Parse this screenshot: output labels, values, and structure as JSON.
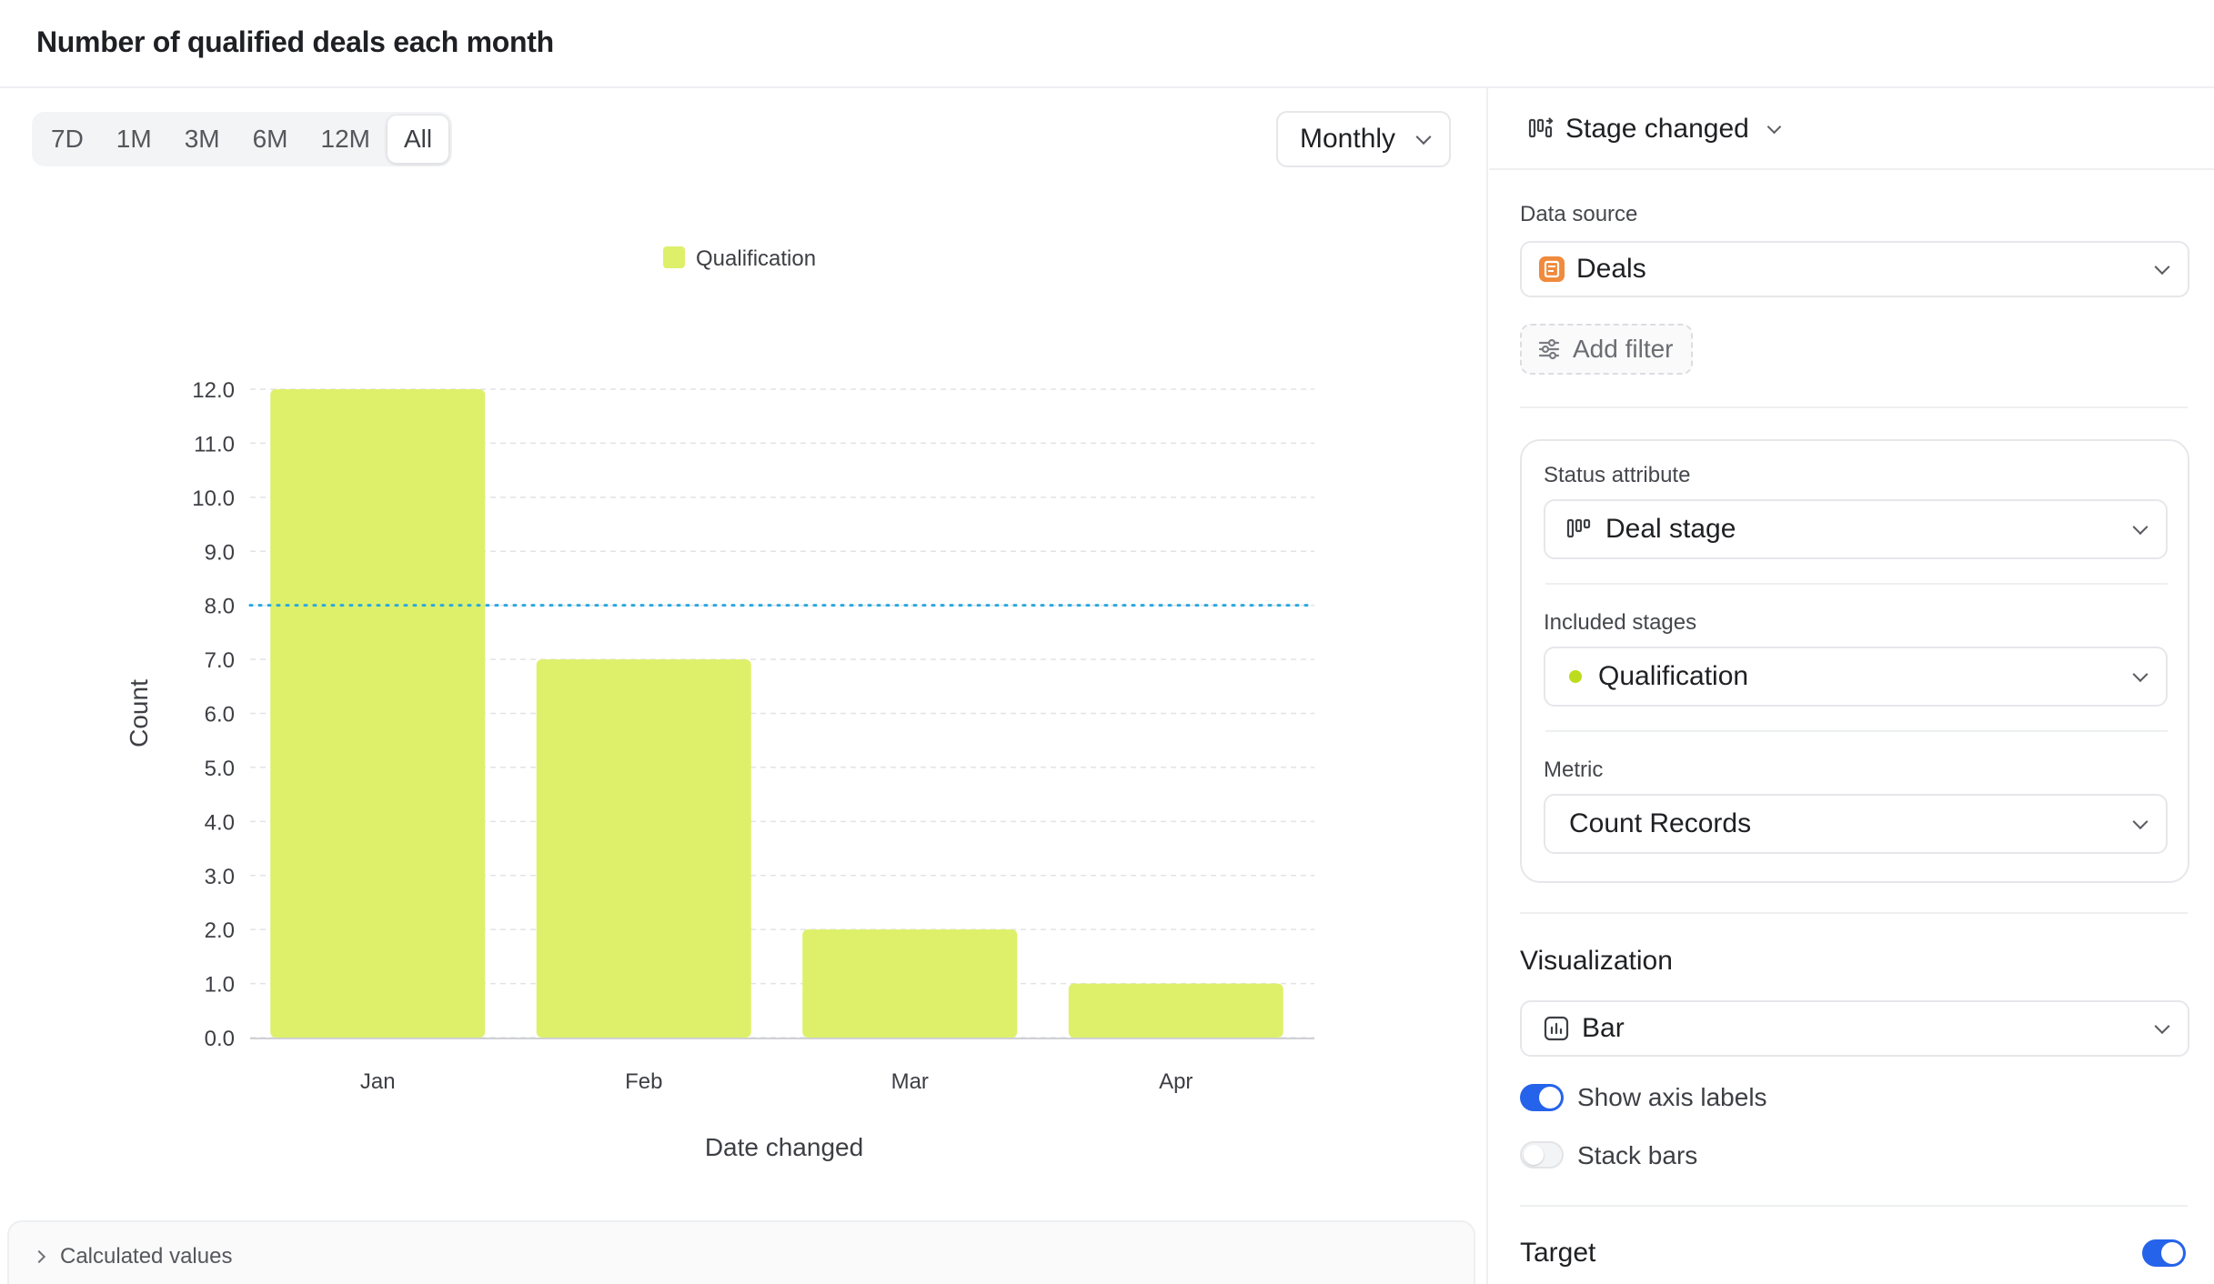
{
  "title": "Number of qualified deals each month",
  "range_options": [
    "7D",
    "1M",
    "3M",
    "6M",
    "12M",
    "All"
  ],
  "range_selected": "All",
  "granularity": "Monthly",
  "chart_data": {
    "type": "bar",
    "categories": [
      "Jan",
      "Feb",
      "Mar",
      "Apr"
    ],
    "series": [
      {
        "name": "Qualification",
        "values": [
          12,
          7,
          2,
          1
        ],
        "color": "#def06a"
      }
    ],
    "xlabel": "Date changed",
    "ylabel": "Count",
    "ylim": [
      0,
      12
    ],
    "yticks": [
      "0.0",
      "1.0",
      "2.0",
      "3.0",
      "4.0",
      "5.0",
      "6.0",
      "7.0",
      "8.0",
      "9.0",
      "10.0",
      "11.0",
      "12.0"
    ],
    "target": 8,
    "target_color": "#2aa8e0",
    "grid": true,
    "legend_position": "top"
  },
  "calculated_values_label": "Calculated values",
  "sidebar": {
    "trigger_label": "Stage changed",
    "data_source_label": "Data source",
    "data_source_value": "Deals",
    "add_filter_label": "Add filter",
    "status_attribute_label": "Status attribute",
    "status_attribute_value": "Deal stage",
    "included_stages_label": "Included stages",
    "included_stages_value": "Qualification",
    "stage_dot_color": "#bedc1e",
    "metric_label": "Metric",
    "metric_value": "Count Records",
    "visualization_label": "Visualization",
    "visualization_value": "Bar",
    "show_axis_labels_label": "Show axis labels",
    "show_axis_labels": true,
    "stack_bars_label": "Stack bars",
    "stack_bars": false,
    "target_label": "Target",
    "target_enabled": true,
    "accent_color": "#2563eb",
    "deals_icon_color": "#f08a3c"
  }
}
